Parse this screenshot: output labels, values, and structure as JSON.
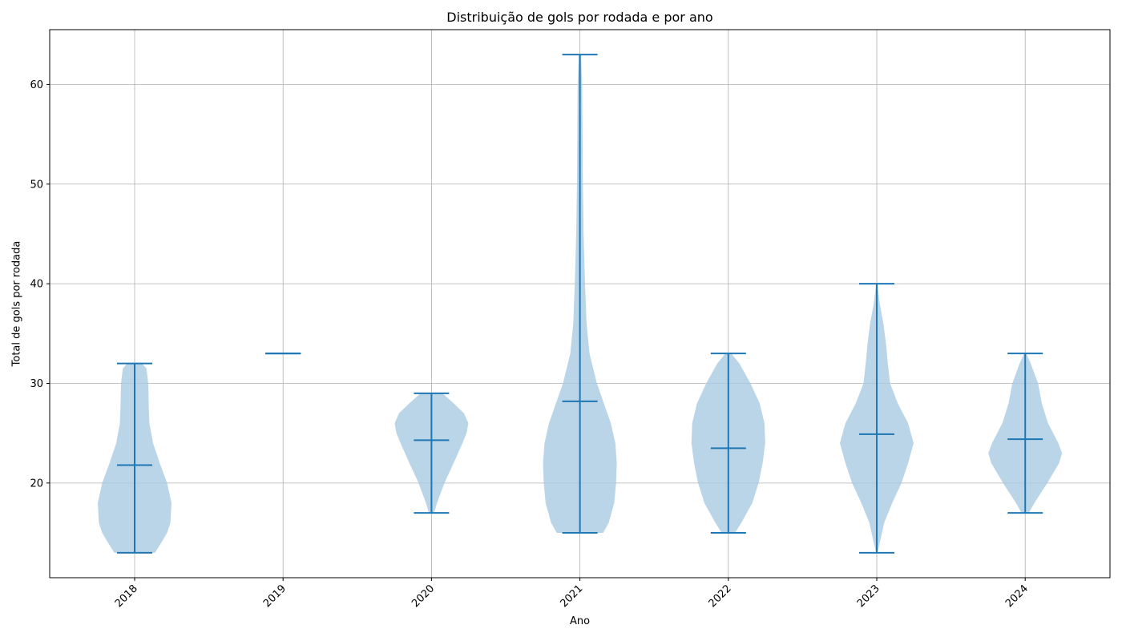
{
  "chart_data": {
    "type": "violin",
    "title": "Distribuição de gols por rodada e por ano",
    "xlabel": "Ano",
    "ylabel": "Total de gols por rodada",
    "categories": [
      "2018",
      "2019",
      "2020",
      "2021",
      "2022",
      "2023",
      "2024"
    ],
    "ylim": [
      10.5,
      65.5
    ],
    "yticks": [
      20,
      30,
      40,
      50,
      60
    ],
    "grid": true,
    "colors": {
      "body": "#a9c9e2",
      "line": "#1f77b4",
      "grid": "#b0b0b0"
    },
    "series": [
      {
        "category": "2018",
        "min": 13,
        "mean": 21.8,
        "max": 32,
        "density": [
          [
            13,
            0.55
          ],
          [
            14,
            0.72
          ],
          [
            15,
            0.88
          ],
          [
            16,
            0.97
          ],
          [
            18,
            1.0
          ],
          [
            20,
            0.88
          ],
          [
            22,
            0.68
          ],
          [
            24,
            0.5
          ],
          [
            26,
            0.4
          ],
          [
            28,
            0.38
          ],
          [
            30,
            0.37
          ],
          [
            31.5,
            0.32
          ],
          [
            32,
            0.2
          ]
        ]
      },
      {
        "category": "2019",
        "min": 33,
        "mean": 33,
        "max": 33,
        "density": []
      },
      {
        "category": "2020",
        "min": 17,
        "mean": 24.3,
        "max": 29,
        "density": [
          [
            17,
            0.07
          ],
          [
            18,
            0.15
          ],
          [
            20,
            0.35
          ],
          [
            22,
            0.6
          ],
          [
            24,
            0.84
          ],
          [
            25,
            0.95
          ],
          [
            26,
            1.0
          ],
          [
            27,
            0.88
          ],
          [
            28,
            0.6
          ],
          [
            29,
            0.3
          ]
        ]
      },
      {
        "category": "2021",
        "min": 15,
        "mean": 28.2,
        "max": 63,
        "density": [
          [
            15,
            0.63
          ],
          [
            16,
            0.78
          ],
          [
            18,
            0.93
          ],
          [
            20,
            0.98
          ],
          [
            22,
            1.0
          ],
          [
            24,
            0.96
          ],
          [
            26,
            0.84
          ],
          [
            28,
            0.65
          ],
          [
            30,
            0.46
          ],
          [
            33,
            0.26
          ],
          [
            36,
            0.18
          ],
          [
            40,
            0.14
          ],
          [
            45,
            0.1
          ],
          [
            50,
            0.08
          ],
          [
            55,
            0.07
          ],
          [
            60,
            0.06
          ],
          [
            63,
            0.03
          ]
        ]
      },
      {
        "category": "2022",
        "min": 15,
        "mean": 23.5,
        "max": 33,
        "density": [
          [
            15,
            0.18
          ],
          [
            16,
            0.35
          ],
          [
            18,
            0.65
          ],
          [
            20,
            0.82
          ],
          [
            22,
            0.93
          ],
          [
            24,
            1.0
          ],
          [
            26,
            0.98
          ],
          [
            28,
            0.85
          ],
          [
            30,
            0.6
          ],
          [
            32,
            0.3
          ],
          [
            33,
            0.08
          ]
        ]
      },
      {
        "category": "2023",
        "min": 13,
        "mean": 24.9,
        "max": 40,
        "density": [
          [
            13,
            0.02
          ],
          [
            14,
            0.08
          ],
          [
            16,
            0.2
          ],
          [
            18,
            0.42
          ],
          [
            20,
            0.67
          ],
          [
            22,
            0.85
          ],
          [
            24,
            1.0
          ],
          [
            26,
            0.85
          ],
          [
            28,
            0.57
          ],
          [
            30,
            0.36
          ],
          [
            32,
            0.3
          ],
          [
            34,
            0.25
          ],
          [
            36,
            0.18
          ],
          [
            38,
            0.08
          ],
          [
            40,
            0.02
          ]
        ]
      },
      {
        "category": "2024",
        "min": 17,
        "mean": 24.4,
        "max": 33,
        "density": [
          [
            17,
            0.1
          ],
          [
            18,
            0.25
          ],
          [
            20,
            0.6
          ],
          [
            22,
            0.92
          ],
          [
            23,
            1.0
          ],
          [
            24,
            0.9
          ],
          [
            26,
            0.62
          ],
          [
            28,
            0.45
          ],
          [
            30,
            0.35
          ],
          [
            32,
            0.15
          ],
          [
            33,
            0.03
          ]
        ]
      }
    ]
  }
}
